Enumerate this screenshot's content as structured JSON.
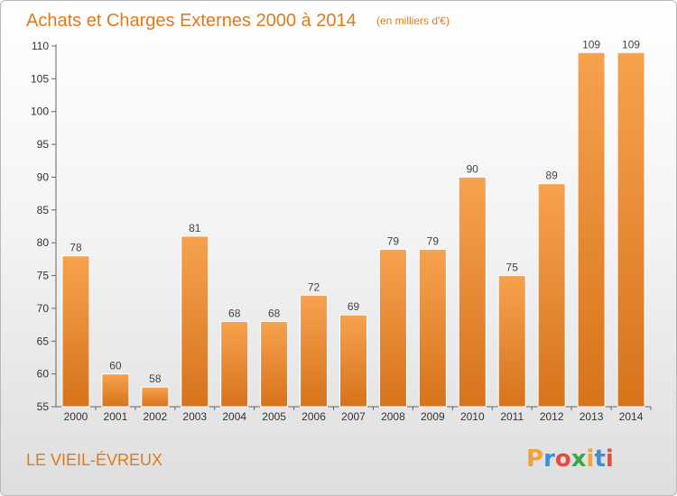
{
  "header": {
    "title": "Achats et Charges Externes 2000 à 2014",
    "unit": "(en milliers d'€)"
  },
  "footer": {
    "place": "LE VIEIL-ÉVREUX"
  },
  "logo": {
    "letters": [
      "P",
      "r",
      "o",
      "x",
      "i",
      "t",
      "i"
    ],
    "colors": [
      "#f0a23c",
      "#3a8fd8",
      "#e64b3c",
      "#3aa84a",
      "#f0a23c",
      "#3a8fd8",
      "#e64b3c"
    ]
  },
  "colors": {
    "accent": "#e07a1e",
    "bar_light": "#f7a14c",
    "bar_dark": "#d8741c"
  },
  "chart_data": {
    "type": "bar",
    "title": "Achats et Charges Externes 2000 à 2014",
    "subtitle": "(en milliers d'€)",
    "categories": [
      "2000",
      "2001",
      "2002",
      "2003",
      "2004",
      "2005",
      "2006",
      "2007",
      "2008",
      "2009",
      "2010",
      "2011",
      "2012",
      "2013",
      "2014"
    ],
    "values": [
      78,
      60,
      58,
      81,
      68,
      68,
      72,
      69,
      79,
      79,
      90,
      75,
      89,
      109,
      109
    ],
    "ylim": [
      55,
      110
    ],
    "yticks": [
      55,
      60,
      65,
      70,
      75,
      80,
      85,
      90,
      95,
      100,
      105,
      110
    ],
    "grid": false,
    "xlabel": "",
    "ylabel": ""
  }
}
